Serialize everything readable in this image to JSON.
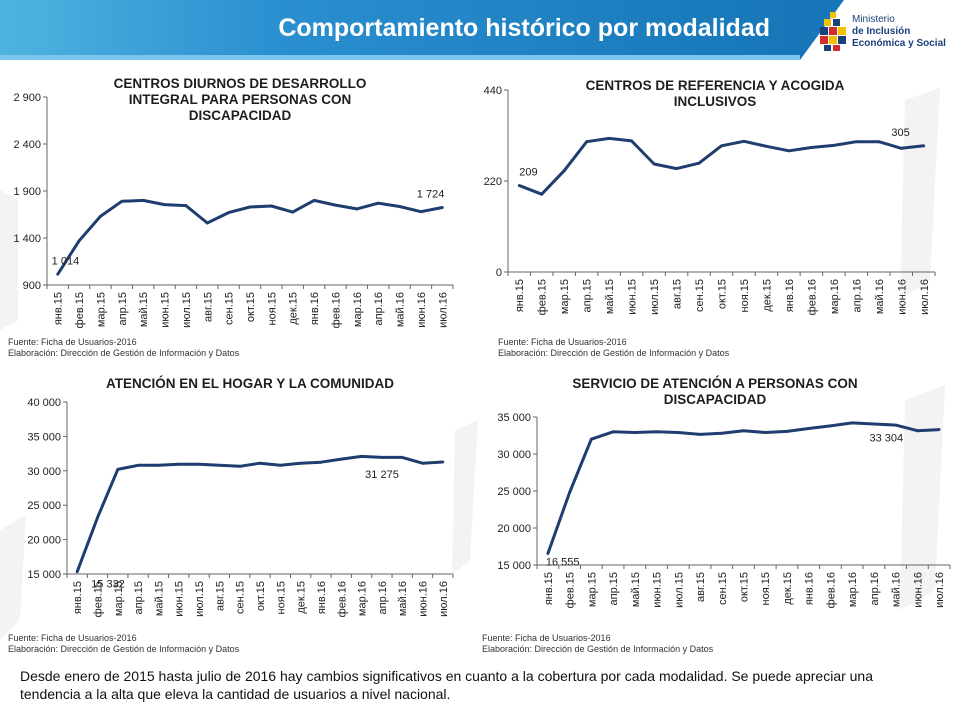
{
  "header": {
    "title": "Comportamiento histórico por modalidad",
    "logo_lines": [
      "Ministerio",
      "de Inclusión",
      "Económica y Social"
    ],
    "colors": {
      "banner": "#1676b8",
      "banner_light": "#4fb3e0",
      "line": "#1f3d6e"
    }
  },
  "source": {
    "line1": "Fuente: Ficha de Usuarios-2016",
    "line2": "Elaboración: Dirección de Gestión de Información y Datos"
  },
  "footnote": "Desde enero de 2015 hasta julio de 2016 hay cambios significativos en cuanto a la cobertura por cada modalidad. Se puede apreciar una tendencia a la alta que eleva la cantidad de usuarios a nivel nacional.",
  "chart_data": [
    {
      "type": "line",
      "title": "CENTROS DIURNOS DE DESARROLLO INTEGRAL PARA PERSONAS CON DISCAPACIDAD",
      "categories": [
        "янв.15",
        "фев.15",
        "мар.15",
        "апр.15",
        "май.15",
        "июн.15",
        "июл.15",
        "авг.15",
        "сен.15",
        "окт.15",
        "ноя.15",
        "дек.15",
        "янв.16",
        "фев.16",
        "мар.16",
        "апр.16",
        "май.16",
        "июн.16",
        "июл.16"
      ],
      "values": [
        1014,
        1370,
        1630,
        1790,
        1800,
        1755,
        1745,
        1560,
        1670,
        1730,
        1740,
        1675,
        1800,
        1750,
        1710,
        1770,
        1735,
        1680,
        1724
      ],
      "yticks": [
        "2 900",
        "2 400",
        "1 900",
        "1 400",
        "900"
      ],
      "ylim": [
        900,
        2900
      ],
      "data_labels": [
        {
          "index": 0,
          "text": "1 014"
        },
        {
          "index": 18,
          "text": "1 724"
        }
      ],
      "grid": false
    },
    {
      "type": "line",
      "title": "CENTROS DE REFERENCIA Y ACOGIDA INCLUSIVOS",
      "categories": [
        "янв.15",
        "фев.15",
        "мар.15",
        "апр.15",
        "май.15",
        "июн.15",
        "июл.15",
        "авг.15",
        "сен.15",
        "окт.15",
        "ноя.15",
        "дек.15",
        "янв.16",
        "фев.16",
        "мар.16",
        "апр.16",
        "май.16",
        "июн.16",
        "июл.16"
      ],
      "values": [
        209,
        188,
        245,
        315,
        323,
        317,
        261,
        250,
        263,
        305,
        316,
        304,
        293,
        301,
        306,
        315,
        315,
        299,
        305
      ],
      "yticks": [
        "440",
        "220",
        "0"
      ],
      "ylim": [
        0,
        440
      ],
      "data_labels": [
        {
          "index": 0,
          "text": "209"
        },
        {
          "index": 18,
          "text": "305"
        }
      ],
      "grid": false
    },
    {
      "type": "line",
      "title": "ATENCIÓN EN EL HOGAR Y LA COMUNIDAD",
      "categories": [
        "янв.15",
        "фев.15",
        "мар.15",
        "апр.15",
        "май.15",
        "июн.15",
        "июл.15",
        "авг.15",
        "сен.15",
        "окт.15",
        "ноя.15",
        "дек.15",
        "янв.16",
        "фев.16",
        "мар.16",
        "апр.16",
        "май.16",
        "июн.16",
        "июл.16"
      ],
      "values": [
        15332,
        23200,
        30200,
        30800,
        30800,
        30950,
        30950,
        30800,
        30650,
        31100,
        30800,
        31100,
        31250,
        31700,
        32100,
        31950,
        31950,
        31100,
        31275
      ],
      "yticks": [
        "40 000",
        "35 000",
        "30 000",
        "25 000",
        "20 000",
        "15 000"
      ],
      "ylim": [
        15000,
        40000
      ],
      "data_labels": [
        {
          "index": 0,
          "text": "15 332"
        },
        {
          "index": 18,
          "text": "31 275"
        }
      ],
      "grid": false
    },
    {
      "type": "line",
      "title": "SERVICIO DE ATENCIÓN A PERSONAS CON DISCAPACIDAD",
      "categories": [
        "янв.15",
        "фев.15",
        "мар.15",
        "апр.15",
        "май.15",
        "июн.15",
        "июл.15",
        "авг.15",
        "сен.15",
        "окт.15",
        "ноя.15",
        "дек.15",
        "янв.16",
        "фев.16",
        "мар.16",
        "апр.16",
        "май.16",
        "июн.16",
        "июл.16"
      ],
      "values": [
        16555,
        24800,
        32000,
        33000,
        32900,
        33000,
        32900,
        32650,
        32800,
        33150,
        32900,
        33050,
        33450,
        33800,
        34200,
        34050,
        33900,
        33150,
        33304
      ],
      "yticks": [
        "35 000",
        "30 000",
        "25 000",
        "20 000",
        "15 000"
      ],
      "ylim": [
        15000,
        35000
      ],
      "data_labels": [
        {
          "index": 0,
          "text": "16 555"
        },
        {
          "index": 18,
          "text": "33 304"
        }
      ],
      "grid": false
    }
  ]
}
